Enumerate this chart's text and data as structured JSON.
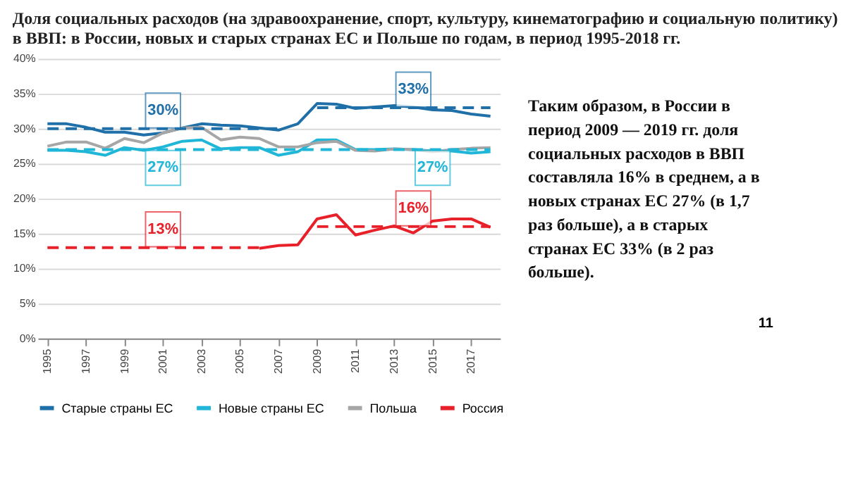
{
  "chart_data": {
    "type": "line",
    "title": "Доля социальных расходов (на здравоохранение, спорт, культуру, кинематографию и социальную политику) в ВВП: в России, новых и старых странах ЕС и Польше по годам, в период 1995-2018 гг.",
    "x": [
      1995,
      1996,
      1997,
      1998,
      1999,
      2000,
      2001,
      2002,
      2003,
      2004,
      2005,
      2006,
      2007,
      2008,
      2009,
      2010,
      2011,
      2012,
      2013,
      2014,
      2015,
      2016,
      2017,
      2018
    ],
    "series": [
      {
        "name": "Старые страны ЕС",
        "color": "#1f6fa8",
        "values": [
          30.7,
          30.7,
          30.2,
          29.5,
          29.5,
          29.1,
          29.4,
          30.1,
          30.7,
          30.5,
          30.4,
          30.1,
          29.8,
          30.7,
          33.6,
          33.5,
          32.9,
          33.1,
          33.3,
          33.1,
          32.7,
          32.6,
          32.1,
          31.8
        ]
      },
      {
        "name": "Новые страны ЕС",
        "color": "#1fb6d8",
        "values": [
          26.9,
          26.9,
          26.7,
          26.2,
          27.3,
          26.9,
          27.4,
          28.2,
          28.4,
          27.1,
          27.3,
          27.3,
          26.2,
          26.7,
          28.4,
          28.4,
          27.0,
          27.0,
          27.1,
          27.0,
          26.8,
          26.8,
          26.5,
          26.7
        ]
      },
      {
        "name": "Польша",
        "color": "#a6a6a6",
        "values": [
          27.5,
          28.1,
          28.1,
          27.2,
          28.6,
          28.0,
          29.4,
          30.1,
          30.2,
          28.4,
          28.8,
          28.6,
          27.4,
          27.4,
          28.0,
          28.2,
          26.9,
          26.8,
          27.1,
          27.0,
          26.7,
          27.0,
          27.2,
          27.3
        ]
      },
      {
        "name": "Россия",
        "color": "#e8202a",
        "x": [
          2006,
          2007,
          2008,
          2009,
          2010,
          2011,
          2012,
          2013,
          2014,
          2015,
          2016,
          2017,
          2018
        ],
        "values": [
          12.9,
          13.3,
          13.4,
          17.1,
          17.7,
          14.8,
          15.5,
          16.1,
          15.1,
          16.8,
          17.1,
          17.1,
          15.9
        ]
      },
      {
        "color": "#1f6fa8",
        "line_style": "dashed",
        "x": [
          1995,
          2007
        ],
        "values": [
          30,
          30
        ]
      },
      {
        "color": "#1f6fa8",
        "line_style": "dashed",
        "x": [
          2009,
          2018
        ],
        "values": [
          33,
          33
        ]
      },
      {
        "color": "#1fb6d8",
        "line_style": "dashed",
        "x": [
          1995,
          2018
        ],
        "values": [
          27,
          27
        ]
      },
      {
        "color": "#e8202a",
        "line_style": "dashed",
        "x": [
          1995,
          2006
        ],
        "values": [
          13,
          13
        ]
      },
      {
        "color": "#e8202a",
        "line_style": "dashed",
        "x": [
          2009,
          2018
        ],
        "values": [
          16,
          16
        ]
      }
    ],
    "xlim": [
      1994.5,
      2018.5
    ],
    "xticks": [
      1995,
      1997,
      1999,
      2001,
      2003,
      2005,
      2007,
      2009,
      2011,
      2013,
      2015,
      2017
    ],
    "ylim": [
      0,
      40
    ],
    "yticks": [
      {
        "value": 0,
        "label": "0%"
      },
      {
        "value": 5,
        "label": "5%"
      },
      {
        "value": 10,
        "label": "10%"
      },
      {
        "value": 15,
        "label": "15%"
      },
      {
        "value": 20,
        "label": "20%"
      },
      {
        "value": 25,
        "label": "25%"
      },
      {
        "value": 30,
        "label": "30%"
      },
      {
        "value": 35,
        "label": "35%"
      },
      {
        "value": 40,
        "label": "40%"
      }
    ],
    "grid": "y",
    "legend": "bottom",
    "line_style": "solid",
    "marker": "none",
    "annotations": [
      {
        "text": "30%",
        "x": 2001,
        "y": 30
      },
      {
        "text": "27%",
        "x": 2001,
        "y": 27
      },
      {
        "text": "13%",
        "x": 2001,
        "y": 13
      },
      {
        "text": "33%",
        "x": 2014,
        "y": 33
      },
      {
        "text": "27%",
        "x": 2015,
        "y": 27
      },
      {
        "text": "16%",
        "x": 2014,
        "y": 16
      },
      "Таким образом, в России в период 2009 — 2019 гг. доля социальных расходов в ВВП составляла 16% в среднем, а в новых странах ЕС 27% (в 1,7 раз больше), а в старых странах ЕС 33% (в 2 раз больше).",
      "11"
    ]
  }
}
